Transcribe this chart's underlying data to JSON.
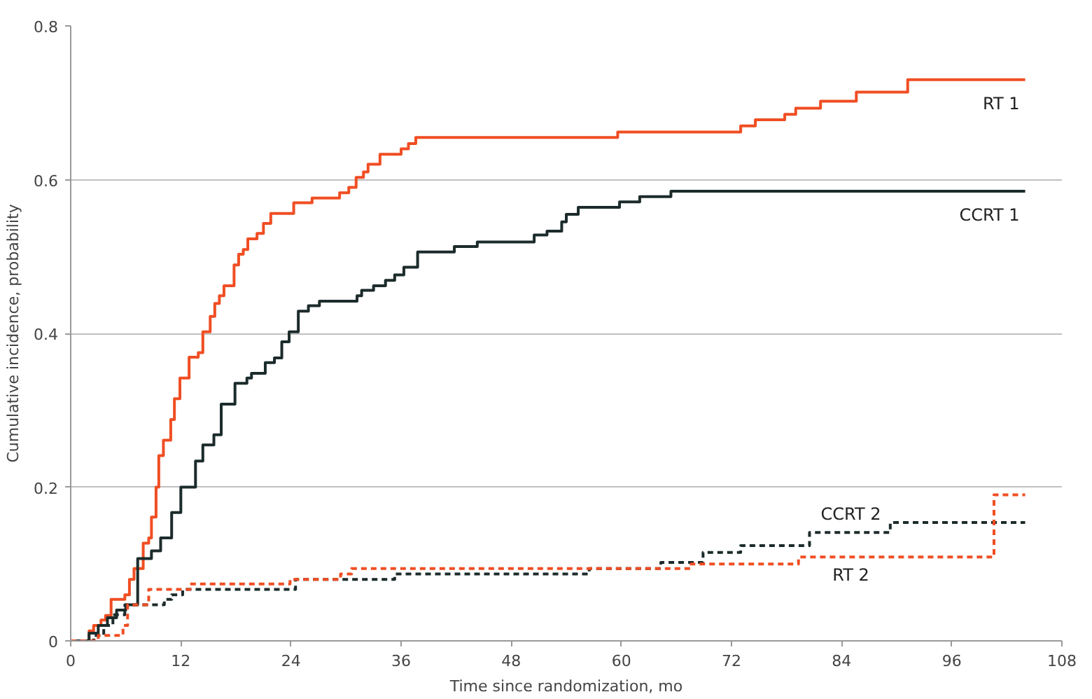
{
  "chart_data": {
    "type": "step",
    "xlabel": "Time since randomization, mo",
    "ylabel": "Cumulative incidence, probability",
    "xlim": [
      0,
      108
    ],
    "ylim": [
      0,
      0.8
    ],
    "xticks": [
      0,
      12,
      24,
      36,
      48,
      60,
      72,
      84,
      96,
      108
    ],
    "yticks": [
      0,
      0.2,
      0.4,
      0.6,
      0.8
    ],
    "grid": "y",
    "series": [
      {
        "name": "RT 1",
        "color": "#f04e23",
        "line_style": "solid",
        "x": [
          0,
          2,
          2.5,
          3.3,
          3.8,
          4.4,
          5.9,
          6.4,
          6.9,
          7.9,
          8.5,
          8.8,
          9.3,
          9.6,
          10.1,
          10.9,
          11.3,
          11.9,
          12.9,
          13.9,
          14.4,
          15.2,
          15.7,
          16.2,
          16.7,
          17.8,
          18.3,
          18.8,
          19.3,
          20.3,
          21,
          21.8,
          24.3,
          26.3,
          29.3,
          30.3,
          31.1,
          31.9,
          32.4,
          33.7,
          36,
          36.8,
          37.6,
          59.6,
          73,
          74.6,
          77.8,
          79,
          81.7,
          85.6,
          91.2,
          104
        ],
        "values": [
          0,
          0.013,
          0.02,
          0.027,
          0.033,
          0.054,
          0.06,
          0.08,
          0.094,
          0.127,
          0.134,
          0.161,
          0.2,
          0.241,
          0.261,
          0.288,
          0.315,
          0.342,
          0.369,
          0.375,
          0.402,
          0.422,
          0.439,
          0.449,
          0.462,
          0.489,
          0.503,
          0.509,
          0.523,
          0.53,
          0.543,
          0.556,
          0.57,
          0.576,
          0.583,
          0.59,
          0.603,
          0.61,
          0.62,
          0.633,
          0.64,
          0.647,
          0.655,
          0.662,
          0.67,
          0.678,
          0.685,
          0.693,
          0.702,
          0.714,
          0.73,
          0.73
        ]
      },
      {
        "name": "CCRT 1",
        "color": "#1c2b2b",
        "line_style": "solid",
        "x": [
          0,
          2,
          3,
          4,
          5,
          6,
          7.3,
          8.8,
          9.8,
          11,
          12,
          13.6,
          14.4,
          15.6,
          16.4,
          17.9,
          19.2,
          19.7,
          21.2,
          22.2,
          23,
          23.8,
          24.8,
          25.9,
          27.1,
          31.2,
          31.7,
          33,
          34.3,
          35.3,
          36.3,
          37.8,
          41.8,
          44.3,
          50.5,
          51.9,
          53.5,
          54,
          55.3,
          59.8,
          62,
          65.4,
          104
        ],
        "values": [
          0,
          0.01,
          0.02,
          0.03,
          0.04,
          0.047,
          0.107,
          0.117,
          0.134,
          0.167,
          0.2,
          0.234,
          0.255,
          0.268,
          0.308,
          0.335,
          0.342,
          0.348,
          0.362,
          0.368,
          0.389,
          0.402,
          0.429,
          0.436,
          0.442,
          0.449,
          0.456,
          0.462,
          0.469,
          0.476,
          0.486,
          0.506,
          0.513,
          0.519,
          0.528,
          0.533,
          0.545,
          0.555,
          0.564,
          0.571,
          0.578,
          0.585,
          0.585
        ]
      },
      {
        "name": "CCRT 2",
        "color": "#1c2b2b",
        "line_style": "dashed",
        "x": [
          0,
          2,
          2.5,
          3.6,
          4.6,
          5.9,
          10.2,
          11,
          12.2,
          24.5,
          35.3,
          56.5,
          64.3,
          68.9,
          73,
          80.5,
          89.3,
          104
        ],
        "values": [
          0,
          0,
          0.007,
          0.02,
          0.034,
          0.047,
          0.054,
          0.06,
          0.067,
          0.08,
          0.087,
          0.094,
          0.102,
          0.115,
          0.124,
          0.141,
          0.154,
          0.154
        ]
      },
      {
        "name": "RT 2",
        "color": "#f04e23",
        "line_style": "dashed",
        "x": [
          0,
          2,
          3,
          5.7,
          6.2,
          8.5,
          13,
          23.9,
          29.4,
          30.6,
          67.6,
          79.3,
          100.6,
          104
        ],
        "values": [
          0,
          0,
          0.007,
          0.02,
          0.047,
          0.067,
          0.074,
          0.08,
          0.087,
          0.094,
          0.1,
          0.109,
          0.19,
          0.19
        ]
      }
    ]
  }
}
